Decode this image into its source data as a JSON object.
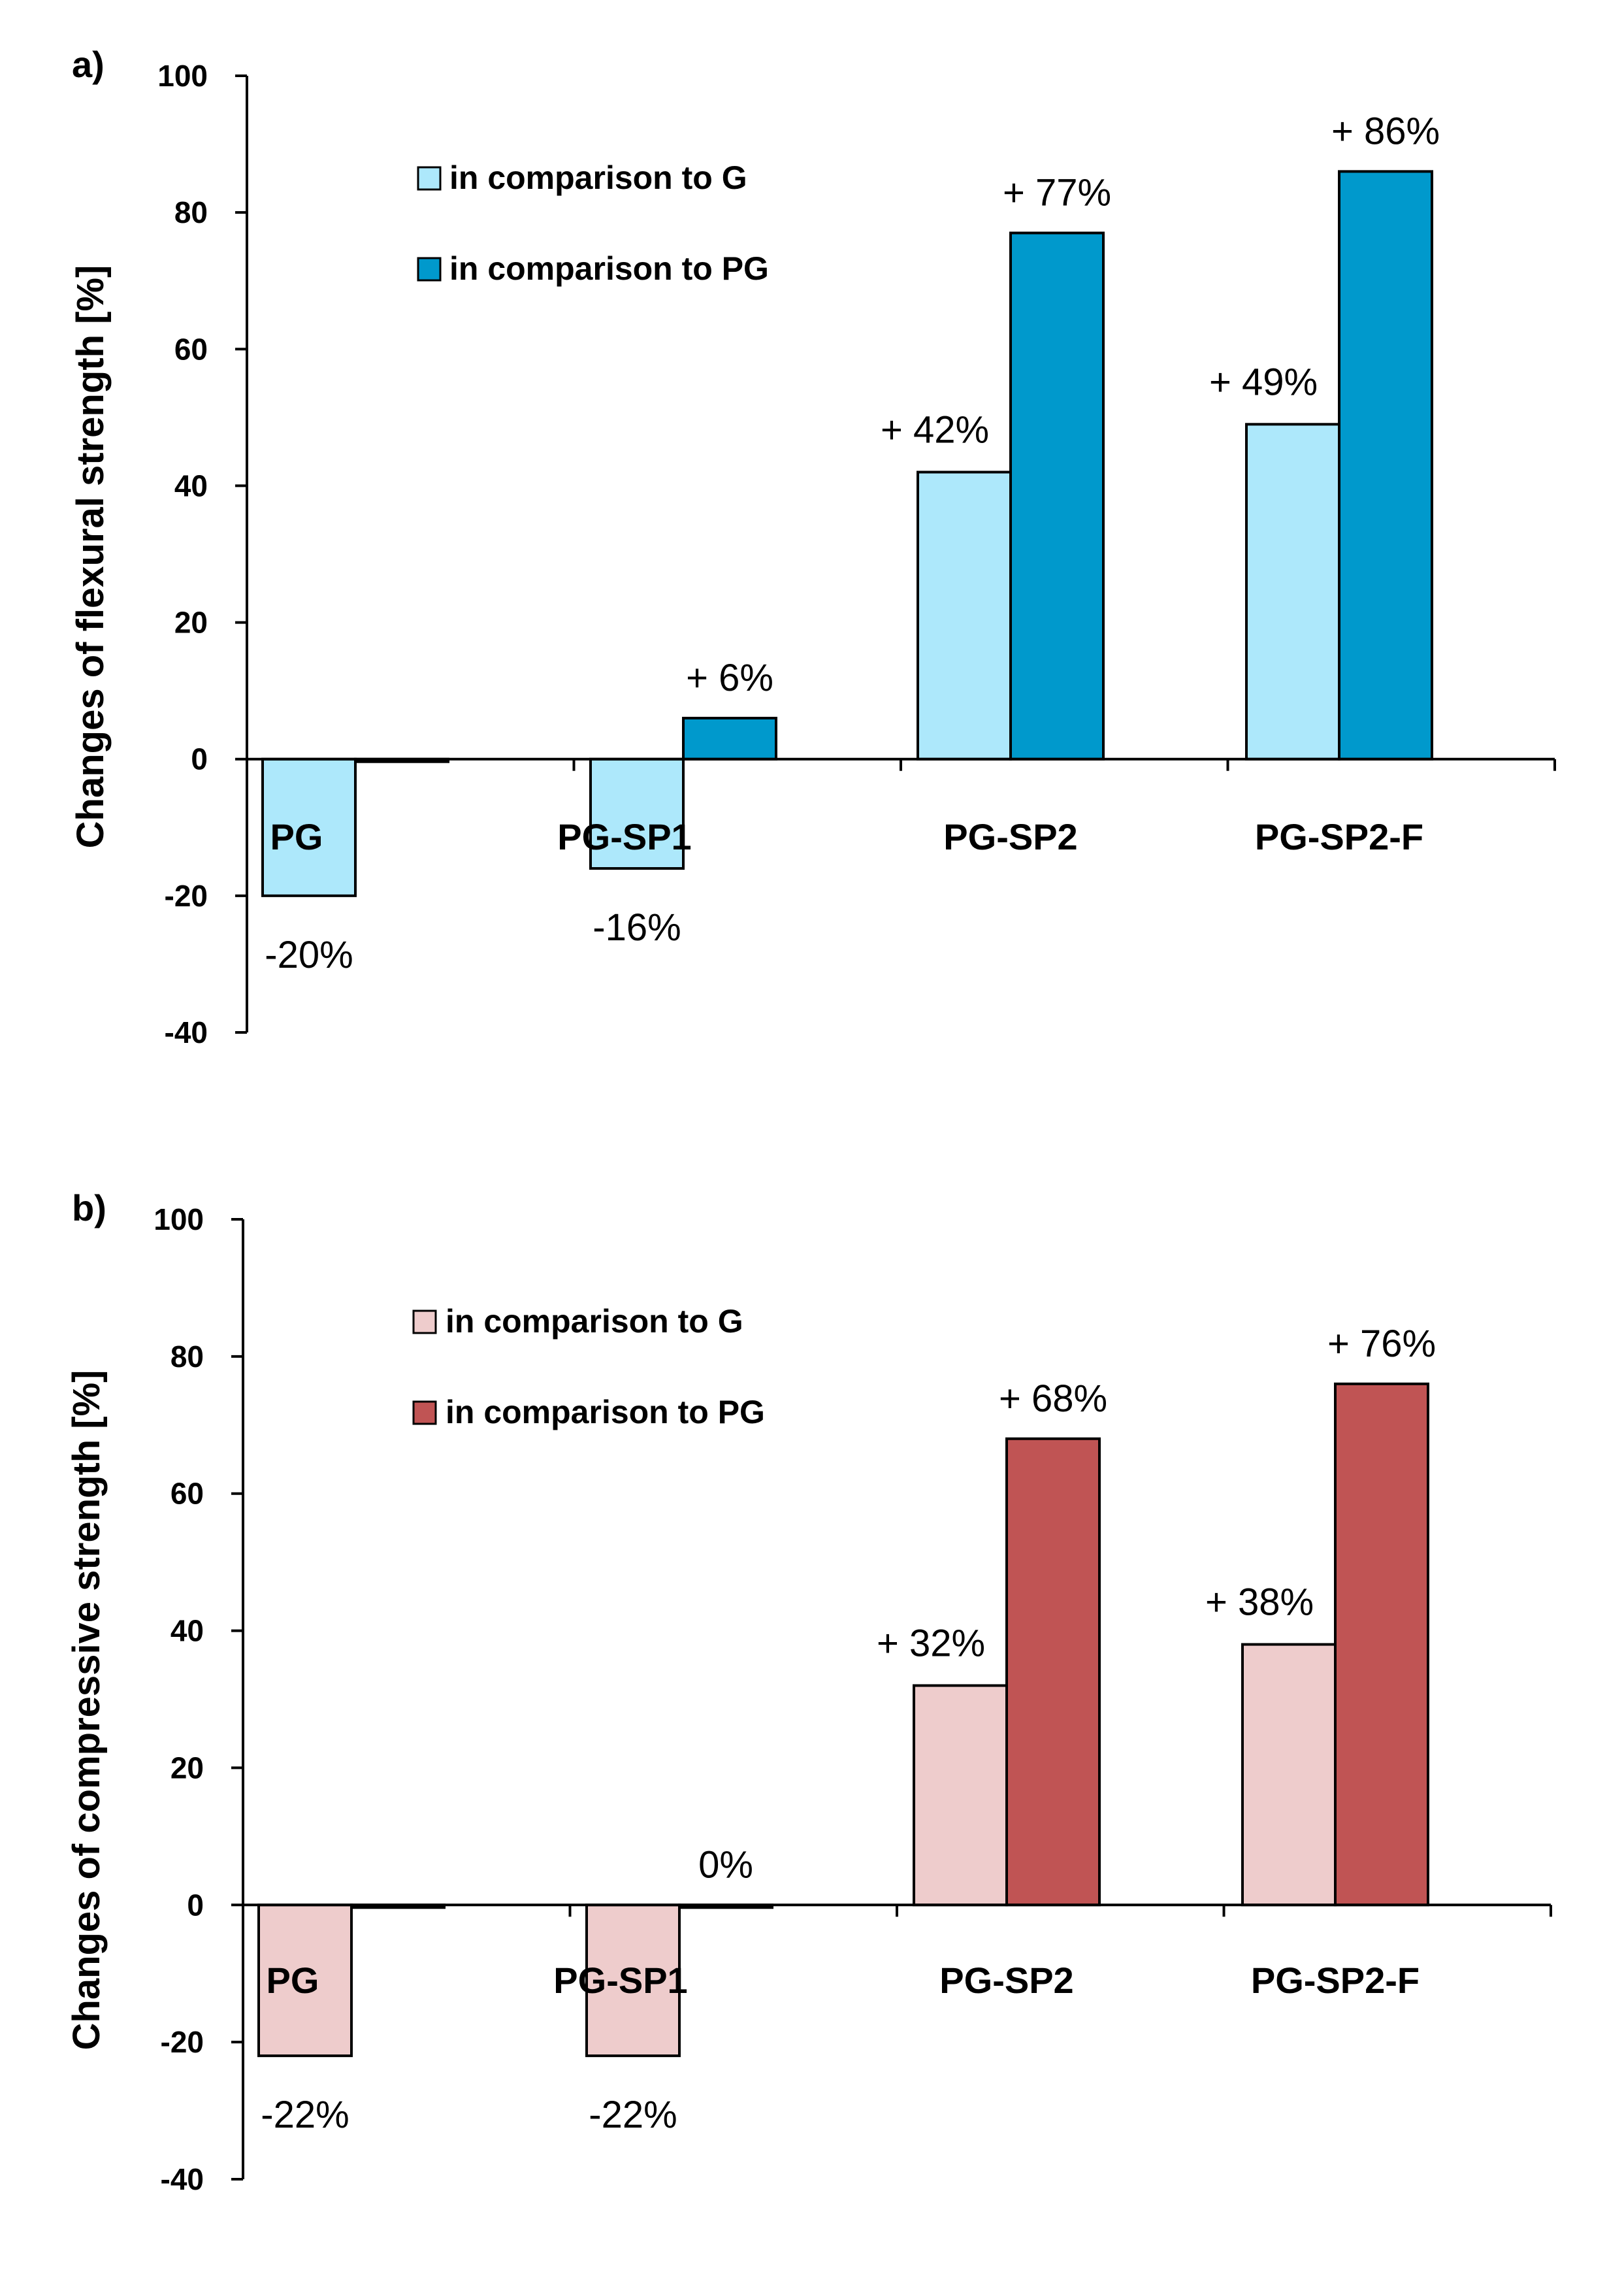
{
  "chart_data": [
    {
      "type": "bar",
      "panel_label": "a)",
      "title": "",
      "ylabel": "Changes of  flexural strength [%]",
      "xlabel": "",
      "ylim": [
        -40,
        100
      ],
      "yticks": [
        -40,
        -20,
        0,
        20,
        40,
        60,
        80,
        100
      ],
      "ytick_labels": [
        "-40",
        "-20",
        "0",
        "20",
        "40",
        "60",
        "80",
        "100"
      ],
      "categories": [
        "PG",
        "PG-SP1",
        "PG-SP2",
        "PG-SP2-F"
      ],
      "legend_position": "top-left",
      "series": [
        {
          "name": "in comparison to G",
          "color": "#ade8fb",
          "values": [
            -20,
            -16,
            42,
            49
          ],
          "labels": [
            "-20%",
            "-16%",
            "+ 42%",
            "+ 49%"
          ]
        },
        {
          "name": "in comparison to PG",
          "color": "#0099cc",
          "values": [
            0,
            6,
            77,
            86
          ],
          "labels": [
            "",
            "+ 6%",
            "+ 77%",
            "+ 86%"
          ]
        }
      ]
    },
    {
      "type": "bar",
      "panel_label": "b)",
      "title": "",
      "ylabel": "Changes of compressive strength [%]",
      "xlabel": "",
      "ylim": [
        -40,
        100
      ],
      "yticks": [
        -40,
        -20,
        0,
        20,
        40,
        60,
        80,
        100
      ],
      "ytick_labels": [
        "-40",
        "-20",
        "0",
        "20",
        "40",
        "60",
        "80",
        "100"
      ],
      "categories": [
        "PG",
        "PG-SP1",
        "PG-SP2",
        "PG-SP2-F"
      ],
      "legend_position": "top-left",
      "series": [
        {
          "name": "in comparison to G",
          "color": "#eecccc",
          "values": [
            -22,
            -22,
            32,
            38
          ],
          "labels": [
            "-22%",
            "-22%",
            "+ 32%",
            "+ 38%"
          ]
        },
        {
          "name": "in comparison to PG",
          "color": "#c05454",
          "values": [
            0,
            0,
            68,
            76
          ],
          "labels": [
            "",
            "0%",
            "+ 68%",
            "+ 76%"
          ]
        }
      ]
    }
  ]
}
